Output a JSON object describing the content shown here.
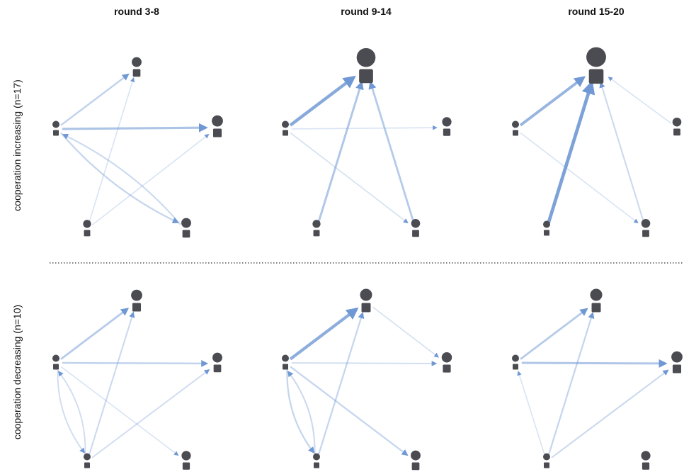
{
  "columns": [
    {
      "title": "round 3-8"
    },
    {
      "title": "round 9-14"
    },
    {
      "title": "round 15-20"
    }
  ],
  "rows": [
    {
      "label": "cooperation increasing (n=17)"
    },
    {
      "label": "cooperation decreasing (n=10)"
    }
  ],
  "colors": {
    "node": "#4b4b52",
    "edge": "#6f98d4",
    "divider": "#333333"
  },
  "node_ids": [
    "A",
    "B",
    "C",
    "D",
    "E"
  ],
  "panels": [
    {
      "row": 0,
      "col": 0,
      "node_sizes": {
        "A": 1.0,
        "B": 1.6,
        "C": 1.9,
        "D": 1.2,
        "E": 1.6
      },
      "edges": [
        {
          "from": "A",
          "to": "B",
          "strength": 0.35
        },
        {
          "from": "A",
          "to": "C",
          "strength": 0.55
        },
        {
          "from": "A",
          "to": "E",
          "strength": 0.3
        },
        {
          "from": "E",
          "to": "A",
          "strength": 0.25
        },
        {
          "from": "D",
          "to": "B",
          "strength": 0.12
        },
        {
          "from": "D",
          "to": "C",
          "strength": 0.12
        }
      ]
    },
    {
      "row": 0,
      "col": 1,
      "node_sizes": {
        "A": 1.0,
        "B": 3.6,
        "C": 1.5,
        "D": 1.2,
        "E": 1.4
      },
      "edges": [
        {
          "from": "A",
          "to": "B",
          "strength": 0.9
        },
        {
          "from": "A",
          "to": "C",
          "strength": 0.12
        },
        {
          "from": "A",
          "to": "E",
          "strength": 0.15
        },
        {
          "from": "D",
          "to": "B",
          "strength": 0.5
        },
        {
          "from": "E",
          "to": "B",
          "strength": 0.45
        }
      ]
    },
    {
      "row": 0,
      "col": 2,
      "node_sizes": {
        "A": 1.0,
        "B": 3.8,
        "C": 1.4,
        "D": 1.0,
        "E": 1.4
      },
      "edges": [
        {
          "from": "A",
          "to": "B",
          "strength": 0.75
        },
        {
          "from": "D",
          "to": "B",
          "strength": 1.0
        },
        {
          "from": "C",
          "to": "B",
          "strength": 0.12
        },
        {
          "from": "A",
          "to": "E",
          "strength": 0.12
        },
        {
          "from": "E",
          "to": "B",
          "strength": 0.25
        }
      ]
    },
    {
      "row": 1,
      "col": 0,
      "node_sizes": {
        "A": 1.0,
        "B": 1.9,
        "C": 1.6,
        "D": 1.0,
        "E": 1.5
      },
      "edges": [
        {
          "from": "A",
          "to": "B",
          "strength": 0.45
        },
        {
          "from": "A",
          "to": "C",
          "strength": 0.35
        },
        {
          "from": "A",
          "to": "E",
          "strength": 0.12
        },
        {
          "from": "A",
          "to": "D",
          "strength": 0.2
        },
        {
          "from": "D",
          "to": "A",
          "strength": 0.2
        },
        {
          "from": "D",
          "to": "B",
          "strength": 0.25
        },
        {
          "from": "D",
          "to": "C",
          "strength": 0.2
        }
      ]
    },
    {
      "row": 1,
      "col": 1,
      "node_sizes": {
        "A": 1.0,
        "B": 2.1,
        "C": 1.7,
        "D": 1.0,
        "E": 1.6
      },
      "edges": [
        {
          "from": "A",
          "to": "B",
          "strength": 0.85
        },
        {
          "from": "B",
          "to": "C",
          "strength": 0.15
        },
        {
          "from": "A",
          "to": "C",
          "strength": 0.2
        },
        {
          "from": "A",
          "to": "E",
          "strength": 0.3
        },
        {
          "from": "A",
          "to": "D",
          "strength": 0.3
        },
        {
          "from": "D",
          "to": "A",
          "strength": 0.25
        },
        {
          "from": "D",
          "to": "B",
          "strength": 0.3
        }
      ]
    },
    {
      "row": 1,
      "col": 2,
      "node_sizes": {
        "A": 1.0,
        "B": 2.1,
        "C": 1.9,
        "D": 1.0,
        "E": 1.5
      },
      "edges": [
        {
          "from": "A",
          "to": "B",
          "strength": 0.45
        },
        {
          "from": "A",
          "to": "C",
          "strength": 0.5
        },
        {
          "from": "D",
          "to": "A",
          "strength": 0.12
        },
        {
          "from": "D",
          "to": "B",
          "strength": 0.3
        },
        {
          "from": "D",
          "to": "C",
          "strength": 0.25
        }
      ]
    }
  ]
}
